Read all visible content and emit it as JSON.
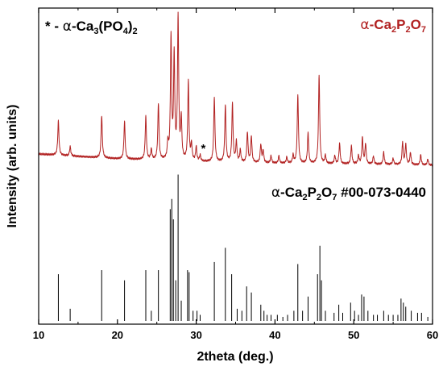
{
  "chart_data": {
    "type": "line",
    "xlabel": "2theta (deg.)",
    "ylabel": "Intensity (arb. units)",
    "xlim": [
      10,
      60
    ],
    "xticks": [
      10,
      20,
      30,
      40,
      50,
      60
    ],
    "y_ticks_shown": false,
    "grid": false,
    "annotations": {
      "star_note": {
        "star": "*",
        "dash": " - ",
        "alpha": "α",
        "ca": "-Ca",
        "ca_sub": "3",
        "po": "(PO",
        "po_sub": "4",
        "close": ")",
        "close_sub": "2"
      },
      "experimental_label": {
        "alpha": "α",
        "ca": "-Ca",
        "ca_sub": "2",
        "p": "P",
        "p_sub": "2",
        "o": "O",
        "o_sub": "7"
      },
      "reference_label": {
        "alpha": "α",
        "ca": "-Ca",
        "ca_sub": "2",
        "p": "P",
        "p_sub": "2",
        "o": "O",
        "o_sub": "7",
        "pdf": " #00-073-0440"
      },
      "impurity_marker": {
        "text": "*",
        "x": 30.9,
        "y": 5
      }
    },
    "colors": {
      "experimental": "#b22222",
      "reference": "#000000",
      "axes": "#000000"
    },
    "series": [
      {
        "style": "profile",
        "baseline": [
          [
            10,
            3.4
          ],
          [
            15,
            2.8
          ],
          [
            20,
            2.2
          ],
          [
            25,
            1.9
          ],
          [
            30,
            1.5
          ],
          [
            35,
            1.3
          ],
          [
            40,
            1.1
          ],
          [
            45,
            1.0
          ],
          [
            50,
            0.9
          ],
          [
            55,
            0.8
          ],
          [
            60,
            0.6
          ]
        ],
        "peaks": [
          [
            12.5,
            8.5
          ],
          [
            14.0,
            2.3
          ],
          [
            18.0,
            10.5
          ],
          [
            20.9,
            9.3
          ],
          [
            23.6,
            10.7
          ],
          [
            24.3,
            2.5
          ],
          [
            25.2,
            13.9
          ],
          [
            26.4,
            4.0
          ],
          [
            26.8,
            30.0
          ],
          [
            27.2,
            25.5
          ],
          [
            27.7,
            35.0
          ],
          [
            28.1,
            10.0
          ],
          [
            29.0,
            19.5
          ],
          [
            29.4,
            4.0
          ],
          [
            30.0,
            3.5
          ],
          [
            30.5,
            1.5
          ],
          [
            32.3,
            16.0
          ],
          [
            33.7,
            14.0
          ],
          [
            34.6,
            14.5
          ],
          [
            35.1,
            5.0
          ],
          [
            35.6,
            3.0
          ],
          [
            36.5,
            7.5
          ],
          [
            37.0,
            6.5
          ],
          [
            38.2,
            4.5
          ],
          [
            38.5,
            3.0
          ],
          [
            39.5,
            1.8
          ],
          [
            40.5,
            1.8
          ],
          [
            41.5,
            1.5
          ],
          [
            42.3,
            2.0
          ],
          [
            42.9,
            17.0
          ],
          [
            44.2,
            7.5
          ],
          [
            45.6,
            22.0
          ],
          [
            46.4,
            2.0
          ],
          [
            47.6,
            2.0
          ],
          [
            48.2,
            5.0
          ],
          [
            49.7,
            4.5
          ],
          [
            50.6,
            2.0
          ],
          [
            51.1,
            6.5
          ],
          [
            51.5,
            5.0
          ],
          [
            52.5,
            2.0
          ],
          [
            53.8,
            3.0
          ],
          [
            55.0,
            1.5
          ],
          [
            56.2,
            5.5
          ],
          [
            56.6,
            5.0
          ],
          [
            57.2,
            3.0
          ],
          [
            58.5,
            2.5
          ],
          [
            59.4,
            1.5
          ]
        ]
      },
      {
        "style": "stick",
        "peaks": [
          [
            12.5,
            23
          ],
          [
            14.0,
            6
          ],
          [
            18.0,
            25
          ],
          [
            20.9,
            20
          ],
          [
            23.6,
            25
          ],
          [
            24.3,
            5
          ],
          [
            25.2,
            25
          ],
          [
            26.7,
            55
          ],
          [
            26.9,
            60
          ],
          [
            27.1,
            50
          ],
          [
            27.4,
            20
          ],
          [
            27.7,
            72
          ],
          [
            28.1,
            10
          ],
          [
            28.9,
            25
          ],
          [
            29.1,
            24
          ],
          [
            29.6,
            5
          ],
          [
            30.1,
            5
          ],
          [
            30.5,
            3
          ],
          [
            32.3,
            29
          ],
          [
            33.7,
            36
          ],
          [
            34.5,
            23
          ],
          [
            35.2,
            6
          ],
          [
            35.8,
            5
          ],
          [
            36.4,
            17
          ],
          [
            37.0,
            14
          ],
          [
            38.2,
            8
          ],
          [
            38.6,
            5
          ],
          [
            39.0,
            3
          ],
          [
            39.5,
            3
          ],
          [
            40.3,
            3
          ],
          [
            41.0,
            2
          ],
          [
            41.6,
            3
          ],
          [
            42.4,
            5
          ],
          [
            42.9,
            28
          ],
          [
            43.5,
            5
          ],
          [
            44.2,
            12
          ],
          [
            45.4,
            23
          ],
          [
            45.7,
            37
          ],
          [
            45.9,
            20
          ],
          [
            46.4,
            5
          ],
          [
            47.5,
            4
          ],
          [
            48.1,
            8
          ],
          [
            48.6,
            4
          ],
          [
            49.6,
            9
          ],
          [
            50.1,
            5
          ],
          [
            50.6,
            3
          ],
          [
            51.0,
            13
          ],
          [
            51.3,
            12
          ],
          [
            51.8,
            5
          ],
          [
            52.5,
            3
          ],
          [
            53.0,
            3
          ],
          [
            53.8,
            5
          ],
          [
            54.4,
            3
          ],
          [
            55.0,
            3
          ],
          [
            55.6,
            3
          ],
          [
            56.0,
            11
          ],
          [
            56.3,
            9
          ],
          [
            56.6,
            7
          ],
          [
            57.3,
            5
          ],
          [
            58.1,
            4
          ],
          [
            58.6,
            4
          ],
          [
            59.4,
            2
          ]
        ]
      }
    ]
  }
}
